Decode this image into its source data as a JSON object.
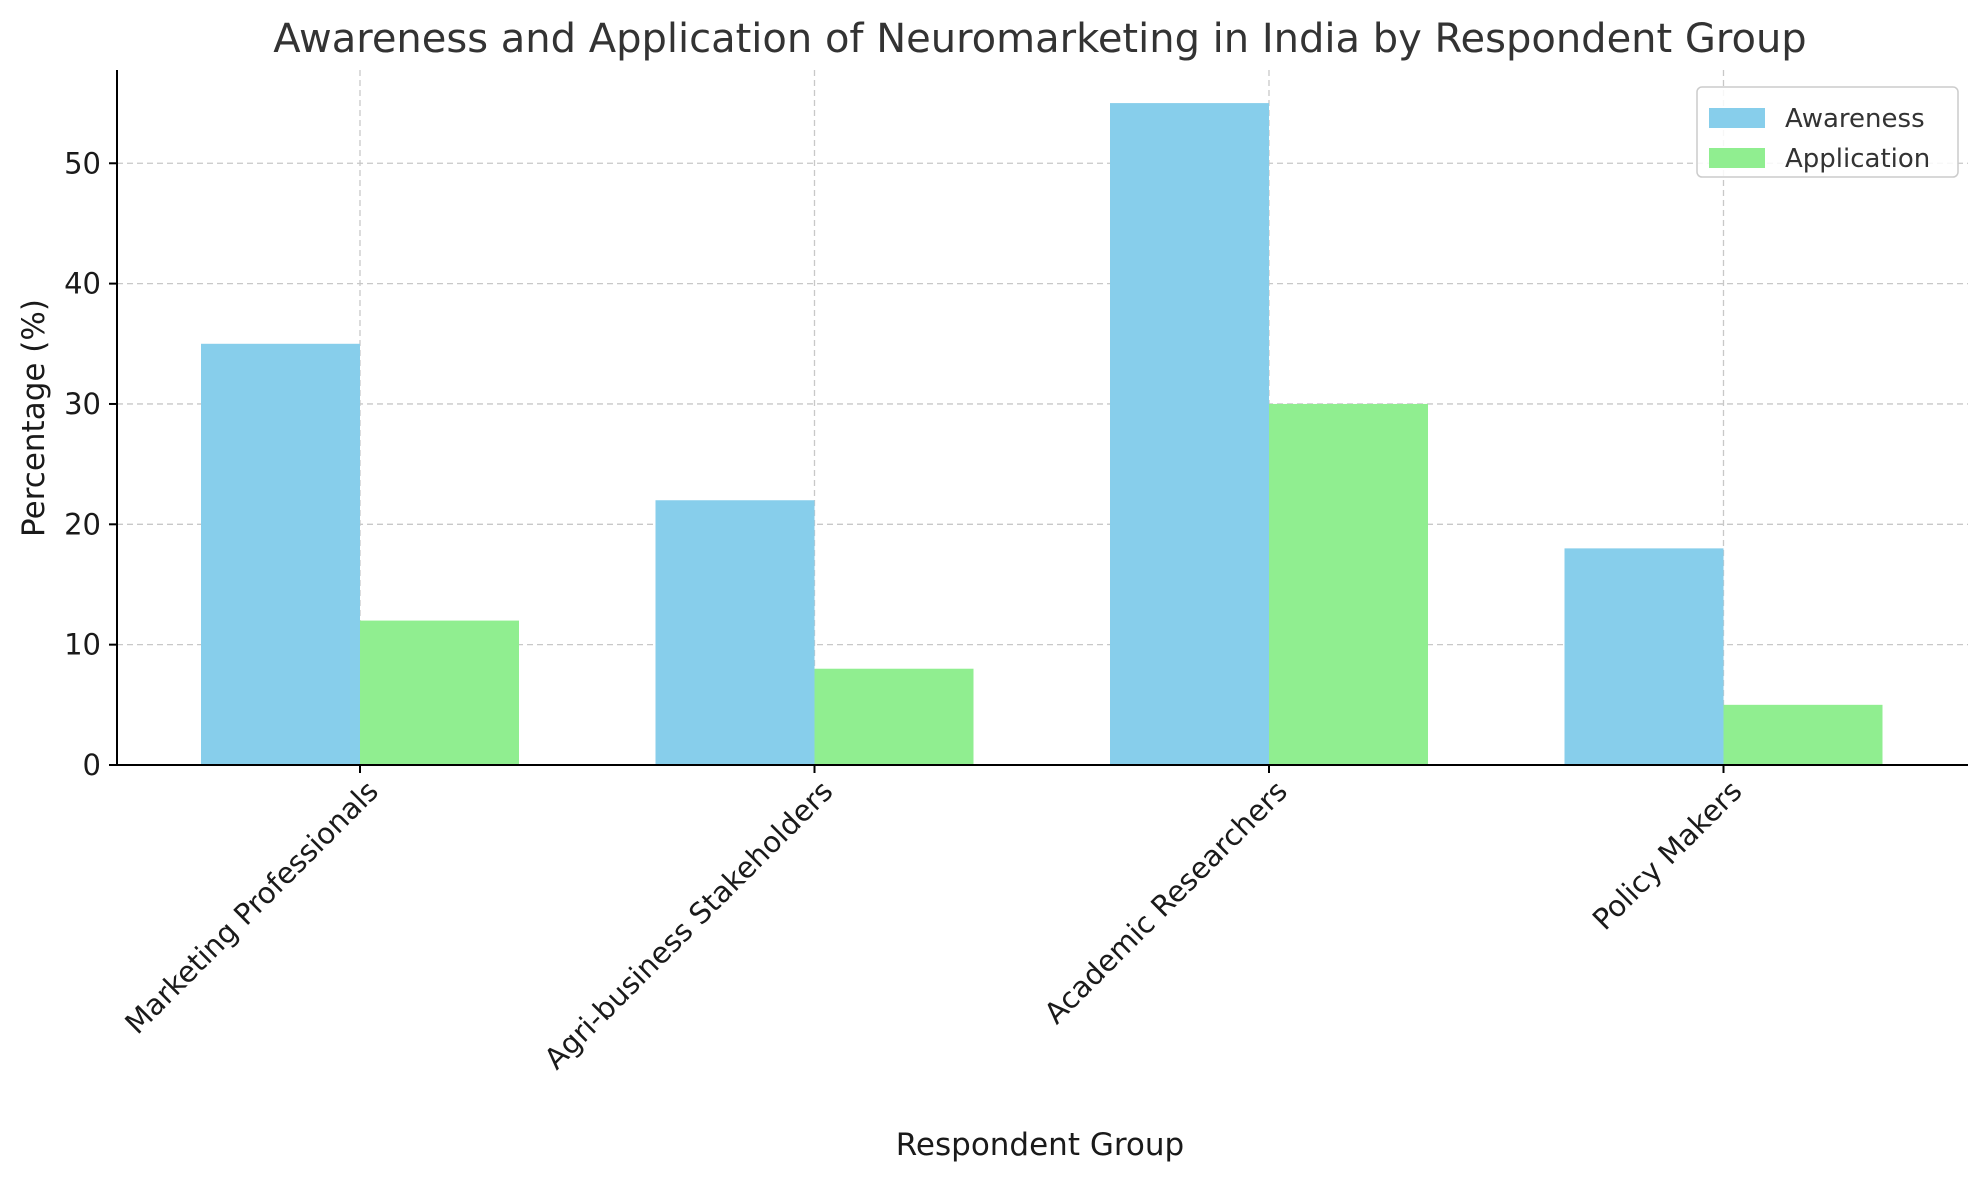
{
  "chart_data": {
    "type": "bar",
    "title": "Awareness and Application of Neuromarketing in India by Respondent Group",
    "xlabel": "Respondent Group",
    "ylabel": "Percentage (%)",
    "categories": [
      "Marketing Professionals",
      "Agri-business Stakeholders",
      "Academic Researchers",
      "Policy Makers"
    ],
    "series": [
      {
        "name": "Awareness",
        "values": [
          35,
          22,
          55,
          18
        ],
        "color": "#87CEEB"
      },
      {
        "name": "Application",
        "values": [
          12,
          8,
          30,
          5
        ],
        "color": "#90EE90"
      }
    ],
    "ylim": [
      0,
      57.75
    ],
    "yticks": [
      0,
      10,
      20,
      30,
      40,
      50
    ],
    "grid": true,
    "legend_position": "top-right"
  }
}
